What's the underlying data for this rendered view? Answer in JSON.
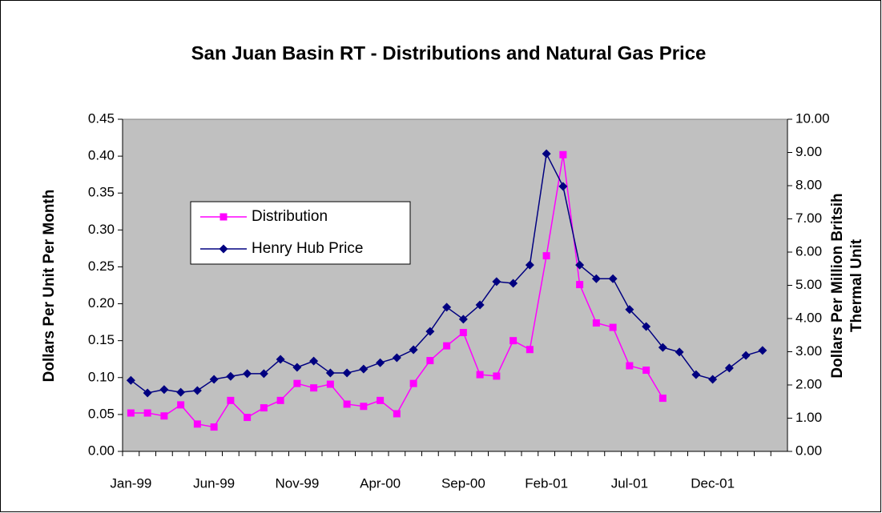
{
  "chart_data": {
    "type": "line",
    "title": "San Juan Basin RT - Distributions and Natural Gas Price",
    "y_label": "Dollars Per Unit Per Month",
    "y2_label": [
      "Dollars Per Million Britsih",
      "Thermal Unit"
    ],
    "categories": [
      "Jan-99",
      null,
      null,
      null,
      null,
      "Jun-99",
      null,
      null,
      null,
      null,
      "Nov-99",
      null,
      null,
      null,
      null,
      "Apr-00",
      null,
      null,
      null,
      null,
      "Sep-00",
      null,
      null,
      null,
      null,
      "Feb-01",
      null,
      null,
      null,
      null,
      "Jul-01",
      null,
      null,
      null,
      null,
      "Dec-01",
      null,
      null,
      null,
      null
    ],
    "ylim": [
      0,
      0.45
    ],
    "yticks": [
      {
        "value": 0,
        "label": "0.00"
      },
      0.05,
      {
        "value": 0.1,
        "label": "0.10"
      },
      0.15,
      {
        "value": 0.2,
        "label": "0.20"
      },
      0.25,
      {
        "value": 0.3,
        "label": "0.30"
      },
      0.35,
      {
        "value": 0.4,
        "label": "0.40"
      },
      0.45
    ],
    "y2lim": [
      0,
      10
    ],
    "y2ticks": [
      {
        "value": 0,
        "label": "0.00"
      },
      {
        "value": 1,
        "label": "1.00"
      },
      {
        "value": 2,
        "label": "2.00"
      },
      {
        "value": 3,
        "label": "3.00"
      },
      {
        "value": 4,
        "label": "4.00"
      },
      {
        "value": 5,
        "label": "5.00"
      },
      {
        "value": 6,
        "label": "6.00"
      },
      {
        "value": 7,
        "label": "7.00"
      },
      {
        "value": 8,
        "label": "8.00"
      },
      {
        "value": 9,
        "label": "9.00"
      },
      {
        "value": 10,
        "label": "10.00"
      }
    ],
    "background": "#c0c0c0",
    "series": [
      {
        "name": "Distribution",
        "color": "#ff00ff",
        "marker": "square",
        "values": [
          0.052,
          0.052,
          0.048,
          0.063,
          0.037,
          0.033,
          0.069,
          0.046,
          0.059,
          0.069,
          0.092,
          0.086,
          0.091,
          0.064,
          0.061,
          0.069,
          0.051,
          0.092,
          0.123,
          0.143,
          0.161,
          0.104,
          0.102,
          0.15,
          0.138,
          0.265,
          0.402,
          0.226,
          0.174,
          0.168,
          0.116,
          0.11,
          0.072,
          null,
          null,
          null,
          null,
          null,
          null,
          null
        ]
      },
      {
        "name": "Henry Hub Price",
        "color": "#000080",
        "marker": "diamond",
        "axis": "y2",
        "values": [
          2.14,
          1.76,
          1.86,
          1.78,
          1.83,
          2.17,
          2.26,
          2.34,
          2.34,
          2.77,
          2.53,
          2.72,
          2.36,
          2.36,
          2.48,
          2.67,
          2.82,
          3.06,
          3.61,
          4.34,
          3.98,
          4.41,
          5.11,
          5.06,
          5.61,
          8.96,
          7.98,
          5.61,
          5.2,
          5.2,
          4.27,
          3.76,
          3.13,
          2.99,
          2.31,
          2.17,
          2.51,
          2.89,
          3.04,
          null
        ]
      }
    ]
  }
}
